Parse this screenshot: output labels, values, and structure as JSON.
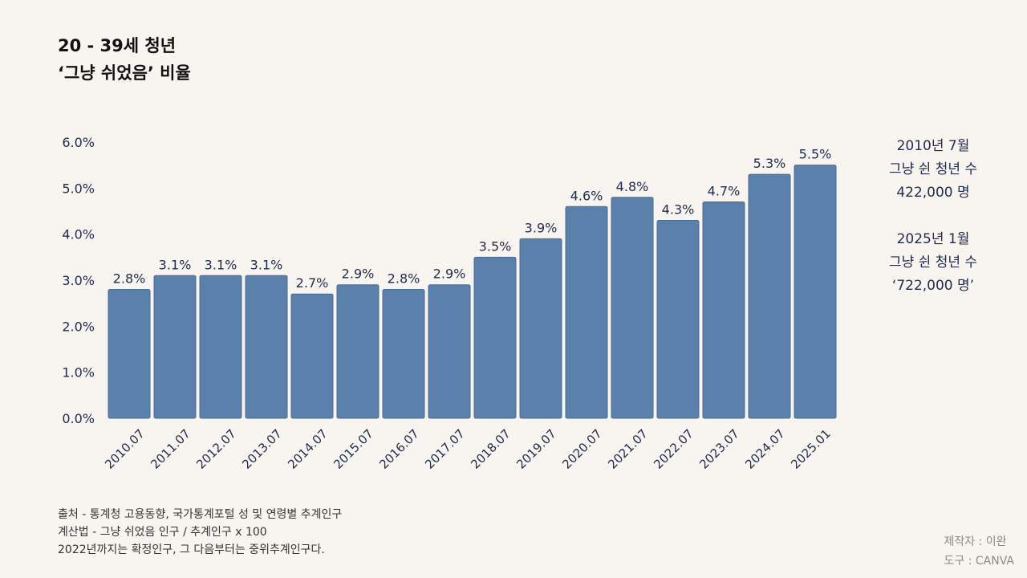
{
  "title": {
    "line1": "20 - 39세 청년",
    "line2": "‘그냥 쉬었음’ 비율"
  },
  "side_note": {
    "block1": [
      "2010년 7월",
      "그냥 쉰 청년 수",
      "422,000 명"
    ],
    "block2": [
      "2025년 1월",
      "그냥 쉰 청년 수",
      "‘722,000 명’"
    ]
  },
  "source": {
    "line1": "출처 - 통계청 고용동향, 국가통계포털 성 및 연령별 추계인구",
    "line2": "계산법 - 그냥 쉬었음 인구 / 추계인구 x 100",
    "line3": "2022년까지는 확정인구, 그 다음부터는 중위추계인구다."
  },
  "credit": {
    "maker": "제작자 : 이완",
    "tool": "도구 : CANVA"
  },
  "colors": {
    "bar": "#5b80ab",
    "bar_stroke": "#4a6d96",
    "text": "#1f2a4d",
    "background": "#f8f5f0"
  },
  "chart_data": {
    "type": "bar",
    "title": "20 - 39세 청년 ‘그냥 쉬었음’ 비율",
    "xlabel": "",
    "ylabel": "",
    "categories": [
      "2010.07",
      "2011.07",
      "2012.07",
      "2013.07",
      "2014.07",
      "2015.07",
      "2016.07",
      "2017.07",
      "2018.07",
      "2019.07",
      "2020.07",
      "2021.07",
      "2022.07",
      "2023.07",
      "2024.07",
      "2025.01"
    ],
    "values": [
      2.8,
      3.1,
      3.1,
      3.1,
      2.7,
      2.9,
      2.8,
      2.9,
      3.5,
      3.9,
      4.6,
      4.8,
      4.3,
      4.7,
      5.3,
      5.5
    ],
    "data_labels": [
      "2.8%",
      "3.1%",
      "3.1%",
      "3.1%",
      "2.7%",
      "2.9%",
      "2.8%",
      "2.9%",
      "3.5%",
      "3.9%",
      "4.6%",
      "4.8%",
      "4.3%",
      "4.7%",
      "5.3%",
      "5.5%"
    ],
    "ylim": [
      0,
      6
    ],
    "yticks": [
      "0.0%",
      "1.0%",
      "2.0%",
      "3.0%",
      "4.0%",
      "5.0%",
      "6.0%"
    ],
    "grid": false,
    "legend": "none"
  }
}
